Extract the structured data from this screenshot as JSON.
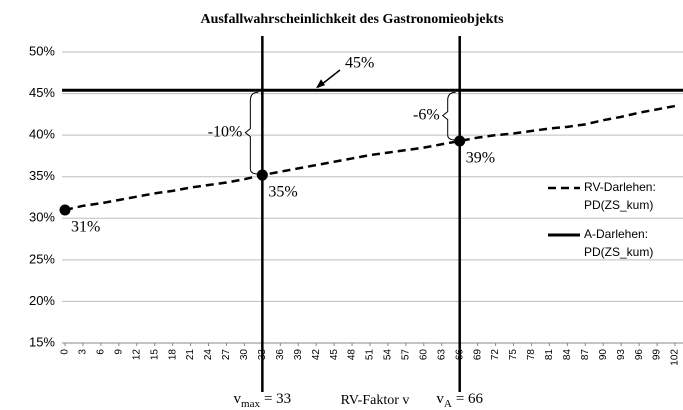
{
  "chart_data": {
    "type": "line",
    "title": "Ausfallwahrscheinlichkeit des Gastronomieobjekts",
    "x_label": "RV-Faktor v",
    "x": [
      0,
      3,
      6,
      9,
      12,
      15,
      18,
      21,
      24,
      27,
      30,
      33,
      36,
      39,
      42,
      45,
      48,
      51,
      54,
      57,
      60,
      63,
      66,
      69,
      72,
      75,
      78,
      81,
      84,
      87,
      90,
      93,
      96,
      99,
      102
    ],
    "xlim": [
      0,
      102
    ],
    "xticks": [
      0,
      3,
      6,
      9,
      12,
      15,
      18,
      21,
      24,
      27,
      30,
      33,
      36,
      39,
      42,
      45,
      48,
      51,
      54,
      57,
      60,
      63,
      66,
      69,
      72,
      75,
      78,
      81,
      84,
      87,
      90,
      93,
      96,
      99,
      102
    ],
    "ylim": [
      15,
      50
    ],
    "yticks": [
      {
        "value": 15,
        "label": "15%"
      },
      {
        "value": 20,
        "label": "20%"
      },
      {
        "value": 25,
        "label": "25%"
      },
      {
        "value": 30,
        "label": "30%"
      },
      {
        "value": 35,
        "label": "35%"
      },
      {
        "value": 40,
        "label": "40%"
      },
      {
        "value": 45,
        "label": "45%"
      },
      {
        "value": 50,
        "label": "50%"
      }
    ],
    "grid": true,
    "series": [
      {
        "name": "RV-Darlehen: PD(ZS_kum)",
        "color": "#000000",
        "dash": true,
        "values": [
          31,
          31.5,
          31.8,
          32.2,
          32.6,
          33,
          33.3,
          33.7,
          34,
          34.3,
          34.7,
          35.2,
          35.6,
          36,
          36.4,
          36.8,
          37.2,
          37.6,
          37.9,
          38.2,
          38.5,
          38.9,
          39.3,
          39.7,
          40,
          40.2,
          40.5,
          40.8,
          41,
          41.3,
          41.8,
          42.2,
          42.7,
          43.1,
          43.5
        ],
        "value_labels": [
          "31%",
          null,
          null,
          null,
          null,
          null,
          null,
          null,
          null,
          null,
          null,
          "35%",
          null,
          null,
          null,
          null,
          null,
          null,
          null,
          null,
          null,
          null,
          "39%",
          null,
          null,
          null,
          null,
          null,
          null,
          null,
          null,
          null,
          null,
          null,
          null
        ]
      }
    ],
    "reference_line": {
      "name": "A-Darlehen: PD(ZS_kum)",
      "value": 45.4,
      "label": "45%",
      "color": "#000000"
    },
    "vlines": [
      {
        "value": 33,
        "symbol": "v",
        "subscript": "max",
        "text": "= 33",
        "difference": "-10%"
      },
      {
        "value": 66,
        "symbol": "v",
        "subscript": "A",
        "text": "= 66",
        "difference": "-6%"
      }
    ]
  }
}
